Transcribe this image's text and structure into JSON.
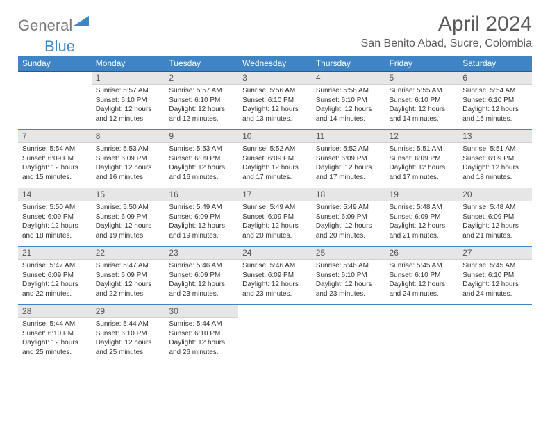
{
  "logo": {
    "part1": "General",
    "part2": "Blue"
  },
  "header": {
    "title": "April 2024",
    "location": "San Benito Abad, Sucre, Colombia"
  },
  "colors": {
    "header_bg": "#3f84c4",
    "daynum_bg": "#e6e6e6",
    "text": "#333333",
    "title_text": "#5a5a5a",
    "border": "#3f84c4"
  },
  "weekdays": [
    "Sunday",
    "Monday",
    "Tuesday",
    "Wednesday",
    "Thursday",
    "Friday",
    "Saturday"
  ],
  "weeks": [
    [
      {
        "blank": true
      },
      {
        "day": "1",
        "sunrise": "Sunrise: 5:57 AM",
        "sunset": "Sunset: 6:10 PM",
        "daylight1": "Daylight: 12 hours",
        "daylight2": "and 12 minutes."
      },
      {
        "day": "2",
        "sunrise": "Sunrise: 5:57 AM",
        "sunset": "Sunset: 6:10 PM",
        "daylight1": "Daylight: 12 hours",
        "daylight2": "and 12 minutes."
      },
      {
        "day": "3",
        "sunrise": "Sunrise: 5:56 AM",
        "sunset": "Sunset: 6:10 PM",
        "daylight1": "Daylight: 12 hours",
        "daylight2": "and 13 minutes."
      },
      {
        "day": "4",
        "sunrise": "Sunrise: 5:56 AM",
        "sunset": "Sunset: 6:10 PM",
        "daylight1": "Daylight: 12 hours",
        "daylight2": "and 14 minutes."
      },
      {
        "day": "5",
        "sunrise": "Sunrise: 5:55 AM",
        "sunset": "Sunset: 6:10 PM",
        "daylight1": "Daylight: 12 hours",
        "daylight2": "and 14 minutes."
      },
      {
        "day": "6",
        "sunrise": "Sunrise: 5:54 AM",
        "sunset": "Sunset: 6:10 PM",
        "daylight1": "Daylight: 12 hours",
        "daylight2": "and 15 minutes."
      }
    ],
    [
      {
        "day": "7",
        "sunrise": "Sunrise: 5:54 AM",
        "sunset": "Sunset: 6:09 PM",
        "daylight1": "Daylight: 12 hours",
        "daylight2": "and 15 minutes."
      },
      {
        "day": "8",
        "sunrise": "Sunrise: 5:53 AM",
        "sunset": "Sunset: 6:09 PM",
        "daylight1": "Daylight: 12 hours",
        "daylight2": "and 16 minutes."
      },
      {
        "day": "9",
        "sunrise": "Sunrise: 5:53 AM",
        "sunset": "Sunset: 6:09 PM",
        "daylight1": "Daylight: 12 hours",
        "daylight2": "and 16 minutes."
      },
      {
        "day": "10",
        "sunrise": "Sunrise: 5:52 AM",
        "sunset": "Sunset: 6:09 PM",
        "daylight1": "Daylight: 12 hours",
        "daylight2": "and 17 minutes."
      },
      {
        "day": "11",
        "sunrise": "Sunrise: 5:52 AM",
        "sunset": "Sunset: 6:09 PM",
        "daylight1": "Daylight: 12 hours",
        "daylight2": "and 17 minutes."
      },
      {
        "day": "12",
        "sunrise": "Sunrise: 5:51 AM",
        "sunset": "Sunset: 6:09 PM",
        "daylight1": "Daylight: 12 hours",
        "daylight2": "and 17 minutes."
      },
      {
        "day": "13",
        "sunrise": "Sunrise: 5:51 AM",
        "sunset": "Sunset: 6:09 PM",
        "daylight1": "Daylight: 12 hours",
        "daylight2": "and 18 minutes."
      }
    ],
    [
      {
        "day": "14",
        "sunrise": "Sunrise: 5:50 AM",
        "sunset": "Sunset: 6:09 PM",
        "daylight1": "Daylight: 12 hours",
        "daylight2": "and 18 minutes."
      },
      {
        "day": "15",
        "sunrise": "Sunrise: 5:50 AM",
        "sunset": "Sunset: 6:09 PM",
        "daylight1": "Daylight: 12 hours",
        "daylight2": "and 19 minutes."
      },
      {
        "day": "16",
        "sunrise": "Sunrise: 5:49 AM",
        "sunset": "Sunset: 6:09 PM",
        "daylight1": "Daylight: 12 hours",
        "daylight2": "and 19 minutes."
      },
      {
        "day": "17",
        "sunrise": "Sunrise: 5:49 AM",
        "sunset": "Sunset: 6:09 PM",
        "daylight1": "Daylight: 12 hours",
        "daylight2": "and 20 minutes."
      },
      {
        "day": "18",
        "sunrise": "Sunrise: 5:49 AM",
        "sunset": "Sunset: 6:09 PM",
        "daylight1": "Daylight: 12 hours",
        "daylight2": "and 20 minutes."
      },
      {
        "day": "19",
        "sunrise": "Sunrise: 5:48 AM",
        "sunset": "Sunset: 6:09 PM",
        "daylight1": "Daylight: 12 hours",
        "daylight2": "and 21 minutes."
      },
      {
        "day": "20",
        "sunrise": "Sunrise: 5:48 AM",
        "sunset": "Sunset: 6:09 PM",
        "daylight1": "Daylight: 12 hours",
        "daylight2": "and 21 minutes."
      }
    ],
    [
      {
        "day": "21",
        "sunrise": "Sunrise: 5:47 AM",
        "sunset": "Sunset: 6:09 PM",
        "daylight1": "Daylight: 12 hours",
        "daylight2": "and 22 minutes."
      },
      {
        "day": "22",
        "sunrise": "Sunrise: 5:47 AM",
        "sunset": "Sunset: 6:09 PM",
        "daylight1": "Daylight: 12 hours",
        "daylight2": "and 22 minutes."
      },
      {
        "day": "23",
        "sunrise": "Sunrise: 5:46 AM",
        "sunset": "Sunset: 6:09 PM",
        "daylight1": "Daylight: 12 hours",
        "daylight2": "and 23 minutes."
      },
      {
        "day": "24",
        "sunrise": "Sunrise: 5:46 AM",
        "sunset": "Sunset: 6:09 PM",
        "daylight1": "Daylight: 12 hours",
        "daylight2": "and 23 minutes."
      },
      {
        "day": "25",
        "sunrise": "Sunrise: 5:46 AM",
        "sunset": "Sunset: 6:10 PM",
        "daylight1": "Daylight: 12 hours",
        "daylight2": "and 23 minutes."
      },
      {
        "day": "26",
        "sunrise": "Sunrise: 5:45 AM",
        "sunset": "Sunset: 6:10 PM",
        "daylight1": "Daylight: 12 hours",
        "daylight2": "and 24 minutes."
      },
      {
        "day": "27",
        "sunrise": "Sunrise: 5:45 AM",
        "sunset": "Sunset: 6:10 PM",
        "daylight1": "Daylight: 12 hours",
        "daylight2": "and 24 minutes."
      }
    ],
    [
      {
        "day": "28",
        "sunrise": "Sunrise: 5:44 AM",
        "sunset": "Sunset: 6:10 PM",
        "daylight1": "Daylight: 12 hours",
        "daylight2": "and 25 minutes."
      },
      {
        "day": "29",
        "sunrise": "Sunrise: 5:44 AM",
        "sunset": "Sunset: 6:10 PM",
        "daylight1": "Daylight: 12 hours",
        "daylight2": "and 25 minutes."
      },
      {
        "day": "30",
        "sunrise": "Sunrise: 5:44 AM",
        "sunset": "Sunset: 6:10 PM",
        "daylight1": "Daylight: 12 hours",
        "daylight2": "and 26 minutes."
      },
      {
        "blank": true
      },
      {
        "blank": true
      },
      {
        "blank": true
      },
      {
        "blank": true
      }
    ]
  ]
}
